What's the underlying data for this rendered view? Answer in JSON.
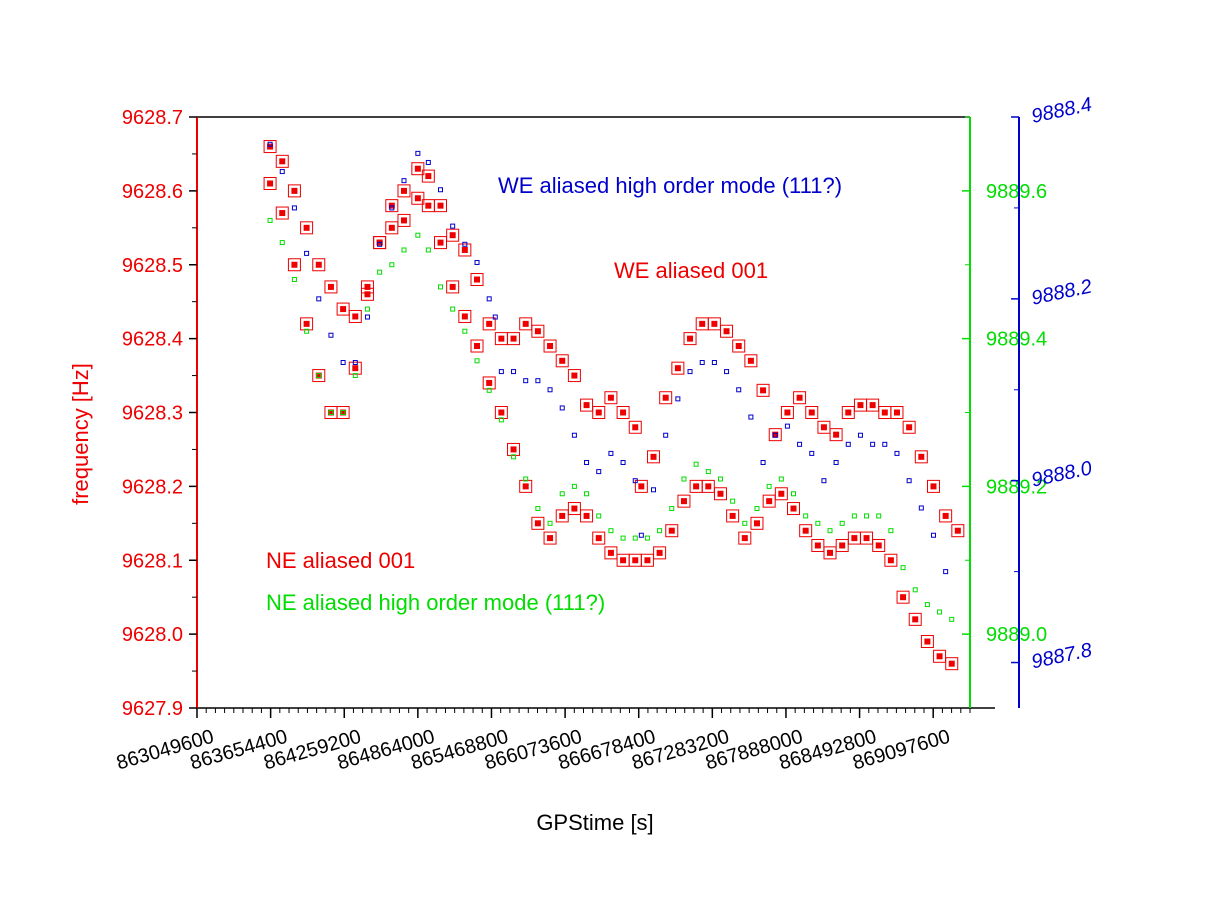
{
  "chart_data": {
    "type": "scatter",
    "xlabel": "GPStime [s]",
    "ylabel": "frequency [Hz]",
    "xlim": [
      863049600,
      869400000
    ],
    "ylim": [
      9627.9,
      9628.7
    ],
    "x_ticks": [
      863049600,
      863654400,
      864259200,
      864864000,
      865468800,
      866073600,
      866678400,
      867283200,
      867888000,
      868492800,
      869097600
    ],
    "y_ticks": [
      "9628.7",
      "9628.6",
      "9628.5",
      "9628.4",
      "9628.3",
      "9628.2",
      "9628.1",
      "9628.0",
      "9627.9"
    ],
    "y2": {
      "color": "#00dd00",
      "ylim": [
        9888.9,
        9889.7
      ],
      "ticks": [
        "9889.6",
        "9889.4",
        "9889.2",
        "9889.0"
      ]
    },
    "y3": {
      "color": "#0000cc",
      "ylim": [
        9887.75,
        9888.4
      ],
      "ticks": [
        "9888.4",
        "9888.2",
        "9888.0",
        "9887.8"
      ]
    },
    "grid": false,
    "colors": {
      "red": "#ee0000",
      "green": "#00dd00",
      "blue": "#0000cc",
      "axis": "#000000"
    },
    "series": [
      {
        "name": "WE aliased high order mode (111?)",
        "axis": "y3",
        "color": "#0000cc",
        "marker": "small-square",
        "x": [
          863650000,
          863750000,
          863850000,
          863950000,
          864050000,
          864150000,
          864250000,
          864350000,
          864450000,
          864550000,
          864650000,
          864750000,
          864864000,
          864950000,
          865050000,
          865150000,
          865250000,
          865350000,
          865450000,
          865500000,
          865550000,
          865650000,
          865750000,
          865850000,
          865950000,
          866050000,
          866150000,
          866250000,
          866350000,
          866450000,
          866550000,
          866650000,
          866700000,
          866800000,
          866900000,
          867000000,
          867100000,
          867200000,
          867300000,
          867400000,
          867500000,
          867600000,
          867700000,
          867800000,
          867900000,
          868000000,
          868100000,
          868200000,
          868300000,
          868400000,
          868500000,
          868600000,
          868700000,
          868800000,
          868900000,
          869000000,
          869100000,
          869200000
        ],
        "y": [
          9888.37,
          9888.34,
          9888.3,
          9888.25,
          9888.2,
          9888.16,
          9888.13,
          9888.13,
          9888.18,
          9888.26,
          9888.3,
          9888.33,
          9888.36,
          9888.35,
          9888.32,
          9888.28,
          9888.26,
          9888.24,
          9888.2,
          9888.18,
          9888.12,
          9888.12,
          9888.11,
          9888.11,
          9888.1,
          9888.08,
          9888.05,
          9888.02,
          9888.01,
          9888.03,
          9888.02,
          9888.0,
          9887.94,
          9887.99,
          9888.05,
          9888.09,
          9888.12,
          9888.13,
          9888.13,
          9888.12,
          9888.1,
          9888.07,
          9888.02,
          9888.05,
          9888.06,
          9888.04,
          9888.03,
          9888.0,
          9888.02,
          9888.04,
          9888.05,
          9888.04,
          9888.04,
          9888.03,
          9888.0,
          9887.97,
          9887.94,
          9887.9
        ]
      },
      {
        "name": "WE aliased 001",
        "axis": "y",
        "color": "#ee0000",
        "marker": "large-open-square",
        "x": [
          863650000,
          863750000,
          863850000,
          863950000,
          864050000,
          864150000,
          864250000,
          864350000,
          864450000,
          864550000,
          864650000,
          864750000,
          864864000,
          864950000,
          865050000,
          865150000,
          865250000,
          865350000,
          865450000,
          865550000,
          865650000,
          865750000,
          865850000,
          865950000,
          866050000,
          866150000,
          866250000,
          866350000,
          866450000,
          866550000,
          866650000,
          866700000,
          866800000,
          866900000,
          867000000,
          867100000,
          867200000,
          867300000,
          867400000,
          867500000,
          867600000,
          867700000,
          867800000,
          867900000,
          868000000,
          868100000,
          868200000,
          868300000,
          868400000,
          868500000,
          868600000,
          868700000,
          868800000,
          868900000,
          869000000,
          869100000,
          869200000,
          869300000
        ],
        "y": [
          9628.66,
          9628.64,
          9628.6,
          9628.55,
          9628.5,
          9628.47,
          9628.44,
          9628.43,
          9628.46,
          9628.53,
          9628.58,
          9628.6,
          9628.63,
          9628.62,
          9628.58,
          9628.54,
          9628.52,
          9628.48,
          9628.42,
          9628.4,
          9628.4,
          9628.42,
          9628.41,
          9628.39,
          9628.37,
          9628.35,
          9628.31,
          9628.3,
          9628.32,
          9628.3,
          9628.28,
          9628.2,
          9628.24,
          9628.32,
          9628.36,
          9628.4,
          9628.42,
          9628.42,
          9628.41,
          9628.39,
          9628.37,
          9628.33,
          9628.27,
          9628.3,
          9628.32,
          9628.3,
          9628.28,
          9628.27,
          9628.3,
          9628.31,
          9628.31,
          9628.3,
          9628.3,
          9628.28,
          9628.24,
          9628.2,
          9628.16,
          9628.14
        ]
      },
      {
        "name": "NE aliased 001",
        "axis": "y",
        "color": "#ee0000",
        "marker": "large-open-square",
        "x": [
          863650000,
          863750000,
          863850000,
          863950000,
          864050000,
          864150000,
          864250000,
          864350000,
          864450000,
          864550000,
          864650000,
          864750000,
          864864000,
          864950000,
          865050000,
          865150000,
          865250000,
          865350000,
          865450000,
          865550000,
          865650000,
          865750000,
          865850000,
          865950000,
          866050000,
          866150000,
          866250000,
          866350000,
          866450000,
          866550000,
          866650000,
          866750000,
          866850000,
          866950000,
          867050000,
          867150000,
          867250000,
          867350000,
          867450000,
          867550000,
          867650000,
          867750000,
          867850000,
          867950000,
          868050000,
          868150000,
          868250000,
          868350000,
          868450000,
          868550000,
          868650000,
          868750000,
          868850000,
          868950000,
          869050000,
          869150000,
          869250000
        ],
        "y": [
          9628.61,
          9628.57,
          9628.5,
          9628.42,
          9628.35,
          9628.3,
          9628.3,
          9628.36,
          9628.47,
          9628.53,
          9628.55,
          9628.56,
          9628.59,
          9628.58,
          9628.53,
          9628.47,
          9628.43,
          9628.39,
          9628.34,
          9628.3,
          9628.25,
          9628.2,
          9628.15,
          9628.13,
          9628.16,
          9628.17,
          9628.16,
          9628.13,
          9628.11,
          9628.1,
          9628.1,
          9628.1,
          9628.11,
          9628.14,
          9628.18,
          9628.2,
          9628.2,
          9628.19,
          9628.16,
          9628.13,
          9628.15,
          9628.18,
          9628.19,
          9628.17,
          9628.14,
          9628.12,
          9628.11,
          9628.12,
          9628.13,
          9628.13,
          9628.12,
          9628.1,
          9628.05,
          9628.02,
          9627.99,
          9627.97,
          9627.96
        ]
      },
      {
        "name": "NE aliased high order mode (111?)",
        "axis": "y2",
        "color": "#00dd00",
        "marker": "small-square",
        "x": [
          863650000,
          863750000,
          863850000,
          863950000,
          864050000,
          864150000,
          864250000,
          864350000,
          864450000,
          864550000,
          864650000,
          864750000,
          864864000,
          864950000,
          865050000,
          865150000,
          865250000,
          865350000,
          865450000,
          865550000,
          865650000,
          865750000,
          865850000,
          865950000,
          866050000,
          866150000,
          866250000,
          866350000,
          866450000,
          866550000,
          866650000,
          866750000,
          866850000,
          866950000,
          867050000,
          867150000,
          867250000,
          867350000,
          867450000,
          867550000,
          867650000,
          867750000,
          867850000,
          867950000,
          868050000,
          868150000,
          868250000,
          868350000,
          868450000,
          868550000,
          868650000,
          868750000,
          868850000,
          868950000,
          869050000,
          869150000,
          869250000
        ],
        "y": [
          9889.56,
          9889.53,
          9889.48,
          9889.41,
          9889.35,
          9889.3,
          9889.3,
          9889.35,
          9889.44,
          9889.49,
          9889.5,
          9889.52,
          9889.54,
          9889.52,
          9889.47,
          9889.44,
          9889.41,
          9889.37,
          9889.33,
          9889.29,
          9889.24,
          9889.21,
          9889.17,
          9889.15,
          9889.19,
          9889.2,
          9889.19,
          9889.16,
          9889.14,
          9889.13,
          9889.13,
          9889.13,
          9889.14,
          9889.17,
          9889.21,
          9889.23,
          9889.22,
          9889.21,
          9889.18,
          9889.15,
          9889.17,
          9889.2,
          9889.21,
          9889.19,
          9889.16,
          9889.15,
          9889.14,
          9889.15,
          9889.16,
          9889.16,
          9889.16,
          9889.14,
          9889.09,
          9889.06,
          9889.04,
          9889.03,
          9889.02
        ]
      }
    ]
  }
}
